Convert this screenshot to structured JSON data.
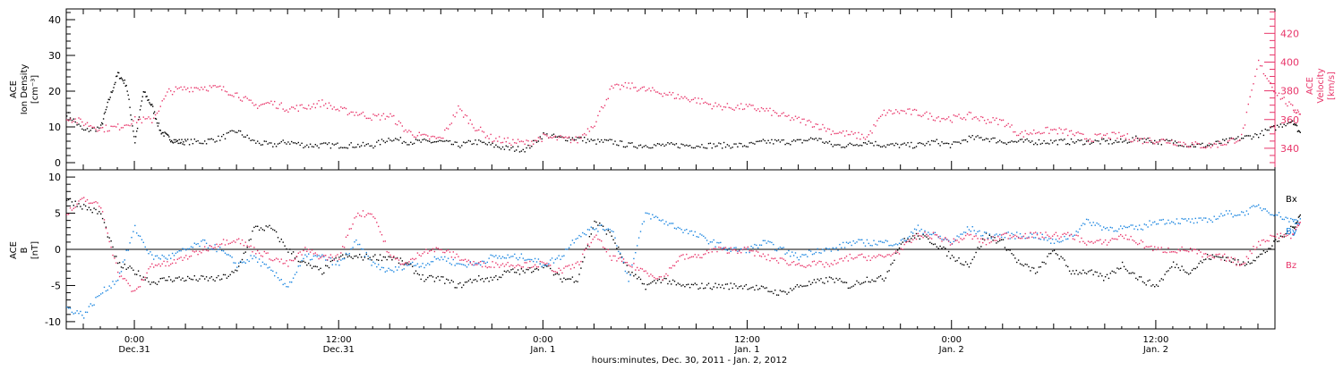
{
  "chart_data": [
    {
      "type": "scatter",
      "panel": "ACE plasma",
      "ylabel": {
        "line1": "ACE",
        "line2": "Ion Density",
        "line3": "[cm⁻³]"
      },
      "ylabel_right": {
        "line1": "ACE",
        "line2": "Velocity",
        "line3": "[km/s]"
      },
      "ylim": [
        -2,
        43
      ],
      "yticks": [
        0,
        10,
        20,
        30,
        40
      ],
      "ylim_right": [
        325,
        437
      ],
      "yticks_right": [
        340,
        360,
        380,
        400,
        420
      ],
      "colors": {
        "density": "#000000",
        "velocity": "#e8356a"
      },
      "series": [
        {
          "id": "density",
          "axis": "left",
          "x_hours": [
            0,
            1,
            2,
            2.5,
            3,
            3.5,
            4,
            4.5,
            5,
            5.5,
            6,
            6.5,
            7,
            8,
            9,
            10,
            11,
            12,
            13,
            14,
            15,
            16,
            17,
            18,
            19,
            20,
            21,
            22,
            23,
            24,
            25,
            26,
            27,
            28,
            29,
            30,
            31,
            32,
            33,
            34,
            35,
            36,
            37,
            38,
            39,
            40,
            41,
            42,
            43,
            44,
            45,
            46,
            47,
            48,
            49,
            50,
            51,
            52,
            53,
            54,
            55,
            56,
            57,
            58,
            59,
            60,
            61,
            62,
            63,
            64,
            65,
            66,
            67,
            68,
            69,
            70,
            71,
            72,
            72.5
          ],
          "y": [
            14,
            9,
            10,
            18,
            25,
            22,
            6,
            20,
            16,
            9,
            7,
            6,
            6,
            6,
            7,
            9,
            6,
            5,
            6,
            5,
            5,
            5,
            5,
            5,
            7,
            6,
            6,
            6,
            5,
            6,
            5,
            4,
            4,
            8,
            7,
            7,
            6,
            6,
            5,
            5,
            5,
            5,
            5,
            5,
            5,
            5,
            6,
            6,
            6,
            7,
            5,
            5,
            6,
            5,
            5,
            5,
            6,
            5,
            7,
            7,
            6,
            6,
            6,
            6,
            6,
            6,
            6,
            6,
            7,
            6,
            6,
            5,
            5,
            6,
            7,
            8,
            10,
            12,
            8
          ]
        },
        {
          "id": "velocity",
          "axis": "right",
          "x_hours": [
            0,
            1,
            2,
            3,
            4,
            5,
            6,
            7,
            8,
            9,
            10,
            11,
            12,
            13,
            14,
            15,
            16,
            17,
            18,
            19,
            20,
            21,
            22,
            23,
            24,
            25,
            26,
            27,
            28,
            29,
            30,
            31,
            32,
            33,
            34,
            35,
            36,
            37,
            38,
            39,
            40,
            41,
            42,
            43,
            44,
            45,
            46,
            47,
            48,
            49,
            50,
            51,
            52,
            53,
            54,
            55,
            56,
            57,
            58,
            59,
            60,
            61,
            62,
            63,
            64,
            65,
            66,
            67,
            68,
            69,
            70,
            71,
            72,
            72.5
          ],
          "y": [
            362,
            358,
            354,
            355,
            360,
            360,
            380,
            382,
            383,
            382,
            378,
            370,
            372,
            368,
            369,
            372,
            367,
            365,
            362,
            363,
            352,
            348,
            347,
            368,
            355,
            347,
            345,
            344,
            348,
            347,
            346,
            358,
            382,
            384,
            381,
            379,
            376,
            374,
            370,
            369,
            369,
            367,
            363,
            360,
            357,
            352,
            350,
            348,
            365,
            366,
            365,
            362,
            361,
            363,
            360,
            359,
            350,
            352,
            353,
            351,
            347,
            349,
            349,
            346,
            346,
            345,
            343,
            342,
            344,
            348,
            400,
            380,
            368,
            365
          ]
        }
      ]
    },
    {
      "type": "scatter",
      "panel": "ACE magnetic field",
      "ylabel": {
        "line1": "ACE",
        "line2": "B",
        "line3": "[nT]"
      },
      "ylim": [
        -11,
        11
      ],
      "yticks": [
        -10,
        -5,
        0,
        5,
        10
      ],
      "zero_line": true,
      "legend": [
        "Bx",
        "By",
        "Bz"
      ],
      "legend_placement": "right",
      "colors": {
        "Bx": "#000000",
        "By": "#1a85e0",
        "Bz": "#e8356a"
      },
      "series": [
        {
          "name": "Bx",
          "x_hours": [
            0,
            1,
            2,
            3,
            4,
            5,
            6,
            7,
            8,
            9,
            10,
            11,
            12,
            13,
            14,
            15,
            16,
            17,
            18,
            19,
            20,
            21,
            22,
            23,
            24,
            25,
            26,
            27,
            28,
            29,
            30,
            31,
            32,
            33,
            34,
            35,
            36,
            37,
            38,
            39,
            40,
            41,
            42,
            43,
            44,
            45,
            46,
            47,
            48,
            49,
            50,
            51,
            52,
            53,
            54,
            55,
            56,
            57,
            58,
            59,
            60,
            61,
            62,
            63,
            64,
            65,
            66,
            67,
            68,
            69,
            70,
            71,
            72,
            72.5
          ],
          "y": [
            7,
            6,
            5,
            -2,
            -3,
            -4.5,
            -4,
            -4,
            -4,
            -4,
            -3,
            3,
            3,
            0,
            -2,
            -3,
            -1,
            -1,
            -1,
            -1,
            -2,
            -4,
            -4,
            -5,
            -4,
            -4,
            -3,
            -3,
            -2,
            -4,
            -4,
            4,
            2,
            -3,
            -5,
            -4,
            -5,
            -5,
            -5,
            -5,
            -5,
            -5.5,
            -6,
            -5,
            -4.5,
            -4,
            -5,
            -4,
            -4,
            1,
            2,
            1,
            -1,
            -2,
            2,
            1,
            -2,
            -3,
            0,
            -3,
            -3,
            -4,
            -2,
            -4,
            -5,
            -2,
            -3,
            -1,
            -1,
            -2,
            -1,
            1,
            3,
            5
          ]
        },
        {
          "name": "By",
          "x_hours": [
            0,
            1,
            2,
            3,
            4,
            5,
            6,
            7,
            8,
            9,
            10,
            11,
            12,
            13,
            14,
            15,
            16,
            17,
            18,
            19,
            20,
            21,
            22,
            23,
            24,
            25,
            26,
            27,
            28,
            29,
            30,
            31,
            32,
            33,
            34,
            35,
            36,
            37,
            38,
            39,
            40,
            41,
            42,
            43,
            44,
            45,
            46,
            47,
            48,
            49,
            50,
            51,
            52,
            53,
            54,
            55,
            56,
            57,
            58,
            59,
            60,
            61,
            62,
            63,
            64,
            65,
            66,
            67,
            68,
            69,
            70,
            71,
            72,
            72.5
          ],
          "y": [
            -8,
            -9,
            -6,
            -4,
            3,
            -1,
            -1,
            0,
            1,
            0,
            -2,
            -1,
            -3,
            -5,
            -1,
            -1,
            -2,
            1,
            -2,
            -3,
            -2,
            -2,
            -1,
            -2,
            -2,
            -1,
            -1,
            -1,
            -2,
            -1,
            2,
            3,
            3,
            -4,
            5,
            4,
            3,
            2,
            1,
            0,
            0,
            1,
            0,
            -1,
            0,
            0,
            1,
            1,
            1,
            1,
            3,
            2,
            1,
            3,
            2,
            2,
            2,
            2,
            1,
            2,
            4,
            3,
            3,
            3,
            4,
            4,
            4,
            4,
            5,
            5,
            6,
            5,
            4,
            4
          ]
        },
        {
          "name": "Bz",
          "x_hours": [
            0,
            1,
            2,
            3,
            4,
            5,
            6,
            7,
            8,
            9,
            10,
            11,
            12,
            13,
            14,
            15,
            16,
            17,
            18,
            19,
            20,
            21,
            22,
            23,
            24,
            25,
            26,
            27,
            28,
            29,
            30,
            31,
            32,
            33,
            34,
            35,
            36,
            37,
            38,
            39,
            40,
            41,
            42,
            43,
            44,
            45,
            46,
            47,
            48,
            49,
            50,
            51,
            52,
            53,
            54,
            55,
            56,
            57,
            58,
            59,
            60,
            61,
            62,
            63,
            64,
            65,
            66,
            67,
            68,
            69,
            70,
            71,
            72,
            72.5
          ],
          "y": [
            5,
            7,
            6,
            -3,
            -6,
            -2,
            -2,
            -1,
            0,
            1,
            1.5,
            0,
            -1,
            -2,
            0,
            -1,
            -1,
            5,
            5,
            -1,
            -2,
            0,
            0,
            -1,
            -2,
            -2,
            -2,
            -2,
            -2,
            -3,
            -2,
            2,
            -1,
            -2,
            -3,
            -4,
            -1,
            -1,
            0,
            0,
            0,
            -1,
            -1.5,
            -2,
            -2,
            -2,
            -1,
            -1,
            -1,
            0,
            2,
            2,
            1,
            2,
            1,
            2,
            2,
            2,
            2,
            2,
            1,
            1,
            2,
            1,
            0,
            0,
            0,
            -1,
            -1,
            -2,
            1,
            2,
            2,
            4
          ]
        }
      ]
    }
  ],
  "x_axis": {
    "tick_labels": [
      {
        "hour": 25,
        "time": "0:00",
        "date": "Dec.31"
      },
      {
        "hour": 37,
        "time": "12:00",
        "date": "Dec.31"
      },
      {
        "hour": 49,
        "time": "0:00",
        "date": "Jan. 1"
      },
      {
        "hour": 61,
        "time": "12:00",
        "date": "Jan. 1"
      },
      {
        "hour": 73,
        "time": "0:00",
        "date": "Jan. 2"
      },
      {
        "hour": 85,
        "time": "12:00",
        "date": "Jan. 2"
      }
    ],
    "xlim_hours": [
      21,
      92
    ],
    "title": "hours:minutes, Dec. 30, 2011 - Jan. 2, 2012"
  },
  "legend_labels": {
    "Bx": "Bx",
    "By": "By",
    "Bz": "Bz"
  },
  "stray_marks": [
    "T"
  ]
}
